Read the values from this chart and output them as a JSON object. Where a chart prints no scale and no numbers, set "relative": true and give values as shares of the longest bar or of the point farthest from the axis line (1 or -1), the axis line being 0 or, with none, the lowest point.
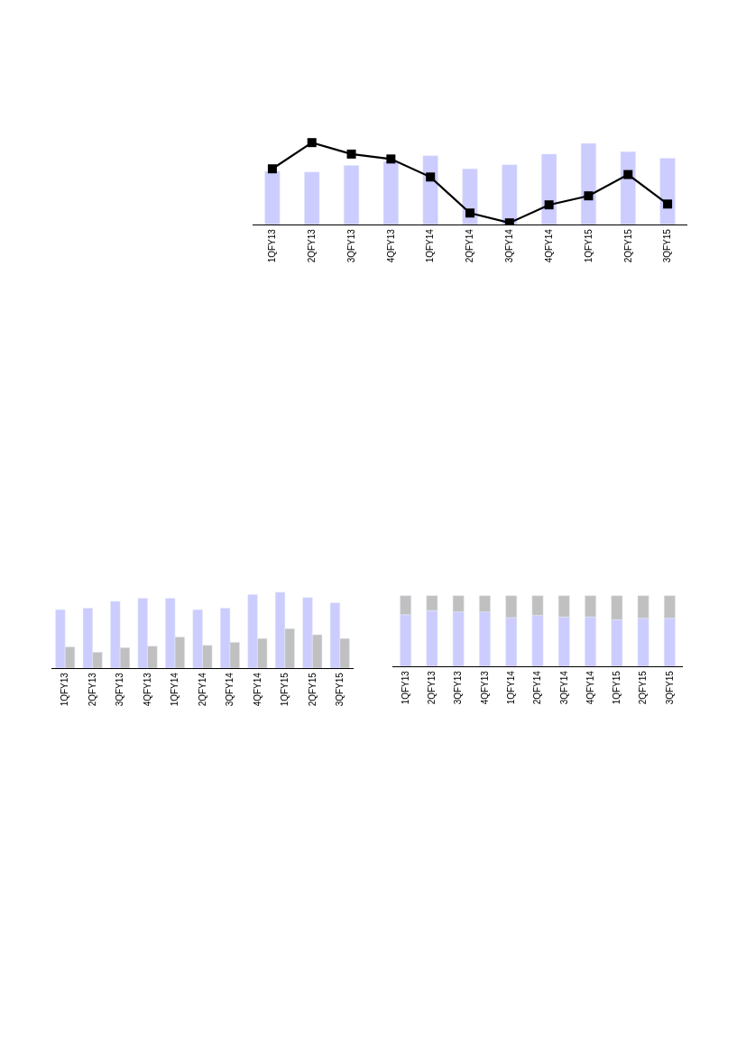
{
  "chart_data": [
    {
      "type": "bar",
      "relative": true,
      "categories": [
        "1QFY13",
        "2QFY13",
        "3QFY13",
        "4QFY13",
        "1QFY14",
        "2QFY14",
        "3QFY14",
        "4QFY14",
        "1QFY15",
        "2QFY15",
        "3QFY15"
      ],
      "series": [
        {
          "type": "bar",
          "color": "#ccccff",
          "values": [
            0.65,
            0.64,
            0.72,
            0.77,
            0.84,
            0.68,
            0.73,
            0.86,
            0.99,
            0.89,
            0.81
          ]
        },
        {
          "type": "line",
          "color": "#000000",
          "marker": "square",
          "line_style": "solid",
          "values": [
            0.68,
            1,
            0.86,
            0.8,
            0.58,
            0.14,
            0.02,
            0.24,
            0.35,
            0.61,
            0.25
          ]
        }
      ]
    },
    {
      "type": "bar",
      "relative": true,
      "categories": [
        "1QFY13",
        "2QFY13",
        "3QFY13",
        "4QFY13",
        "1QFY14",
        "2QFY14",
        "3QFY14",
        "4QFY14",
        "1QFY15",
        "2QFY15",
        "3QFY15"
      ],
      "series": [
        {
          "color": "#ccccff",
          "values": [
            0.77,
            0.79,
            0.88,
            0.92,
            0.92,
            0.77,
            0.79,
            0.97,
            1,
            0.93,
            0.86
          ]
        },
        {
          "color": "#c0c0c0",
          "values": [
            0.28,
            0.21,
            0.27,
            0.29,
            0.41,
            0.3,
            0.34,
            0.39,
            0.52,
            0.44,
            0.39
          ]
        }
      ]
    },
    {
      "type": "bar",
      "relative": true,
      "stacked": true,
      "categories": [
        "1QFY13",
        "2QFY13",
        "3QFY13",
        "4QFY13",
        "1QFY14",
        "2QFY14",
        "3QFY14",
        "4QFY14",
        "1QFY15",
        "2QFY15",
        "3QFY15"
      ],
      "series": [
        {
          "color": "#ccccff",
          "values": [
            0.73,
            0.79,
            0.77,
            0.77,
            0.69,
            0.72,
            0.7,
            0.7,
            0.66,
            0.68,
            0.68
          ]
        },
        {
          "color": "#c0c0c0",
          "values": [
            0.27,
            0.21,
            0.23,
            0.23,
            0.31,
            0.28,
            0.3,
            0.3,
            0.34,
            0.32,
            0.32
          ]
        }
      ]
    }
  ]
}
